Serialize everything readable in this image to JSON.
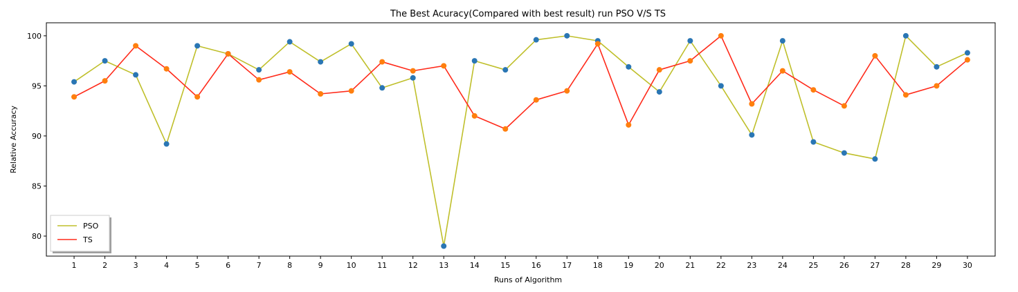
{
  "chart_data": {
    "type": "line",
    "title": "The Best Acuracy(Compared with best result) run PSO V/S TS",
    "xlabel": "Runs of Algorithm",
    "ylabel": "Relative Accuracy",
    "x": [
      1,
      2,
      3,
      4,
      5,
      6,
      7,
      8,
      9,
      10,
      11,
      12,
      13,
      14,
      15,
      16,
      17,
      18,
      19,
      20,
      21,
      22,
      23,
      24,
      25,
      26,
      27,
      28,
      29,
      30
    ],
    "xlim": [
      0.1,
      30.9
    ],
    "ylim": [
      78,
      101.3
    ],
    "yticks": [
      80,
      85,
      90,
      95,
      100
    ],
    "grid": false,
    "legend_position": "lower-left",
    "series": [
      {
        "name": "PSO",
        "line_color": "#bfbf2a",
        "marker_color": "#2a76b4",
        "values": [
          95.4,
          97.5,
          96.1,
          89.2,
          99.0,
          98.2,
          96.6,
          99.4,
          97.4,
          99.2,
          94.8,
          95.8,
          79.0,
          97.5,
          96.6,
          99.6,
          100.0,
          99.5,
          96.9,
          94.4,
          99.5,
          95.0,
          90.1,
          99.5,
          89.4,
          88.3,
          87.7,
          100.0,
          96.9,
          98.3
        ]
      },
      {
        "name": "TS",
        "line_color": "#ff2a1a",
        "marker_color": "#ff7f0e",
        "values": [
          93.9,
          95.5,
          99.0,
          96.7,
          93.9,
          98.2,
          95.6,
          96.4,
          94.2,
          94.5,
          97.4,
          96.5,
          97.0,
          92.0,
          90.7,
          93.6,
          94.5,
          99.2,
          91.1,
          96.6,
          97.5,
          100.0,
          93.2,
          96.5,
          94.6,
          93.0,
          98.0,
          94.1,
          95.0,
          97.6
        ]
      }
    ]
  }
}
